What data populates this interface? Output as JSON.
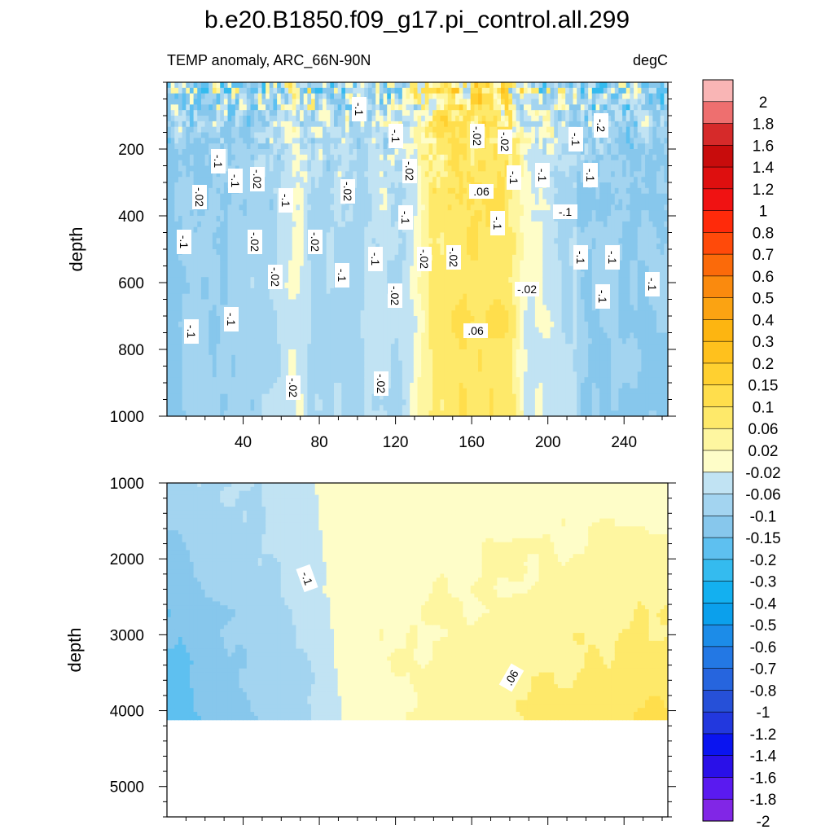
{
  "title": "b.e20.B1850.f09_g17.pi_control.all.299",
  "chart_data": {
    "type": "heatmap",
    "variable_label": "TEMP anomaly, ARC_66N-90N",
    "units_label": "degC",
    "colorbar": {
      "levels": [
        "2",
        "1.8",
        "1.6",
        "1.4",
        "1.2",
        "1",
        "0.8",
        "0.7",
        "0.6",
        "0.5",
        "0.4",
        "0.3",
        "0.2",
        "0.15",
        "0.1",
        "0.06",
        "0.02",
        "-0.02",
        "-0.06",
        "-0.1",
        "-0.15",
        "-0.2",
        "-0.3",
        "-0.4",
        "-0.5",
        "-0.6",
        "-0.7",
        "-0.8",
        "-1",
        "-1.2",
        "-1.4",
        "-1.6",
        "-1.8",
        "-2"
      ],
      "colors": [
        "#f9b5b5",
        "#ee6f6f",
        "#d62a2a",
        "#c80c0c",
        "#de0f0f",
        "#f01212",
        "#ff2a0a",
        "#ff4a0a",
        "#fb6a0a",
        "#fa8a0e",
        "#fba312",
        "#fdb511",
        "#ffc11d",
        "#ffd030",
        "#ffde4c",
        "#fee96a",
        "#fef6a0",
        "#fefdc8",
        "#c1e3f3",
        "#a3d4f0",
        "#87c7ec",
        "#5ec0f0",
        "#34bbef",
        "#13b0f0",
        "#0ba0ec",
        "#1c8ce8",
        "#2378e4",
        "#2665de",
        "#2650d8",
        "#2238de",
        "#0a14f0",
        "#2a10e8",
        "#5a1af0",
        "#8126e6"
      ]
    },
    "x_ticks": [
      "40",
      "80",
      "120",
      "160",
      "200",
      "240"
    ],
    "x_range": [
      0,
      263
    ],
    "upper_panel": {
      "ylabel": "depth",
      "y_ticks": [
        "200",
        "400",
        "600",
        "800",
        "1000"
      ],
      "y_range": [
        0,
        1000
      ],
      "contour_labels": [
        "-.1",
        "-.02",
        "-.1",
        "-.1",
        "-.02",
        "-.02",
        "-.02",
        "-.1",
        "-.2",
        "-.1",
        "-.02",
        "-.1",
        "-.02",
        "-.02",
        "-.1",
        "-.1",
        ".06",
        "-.1",
        "-.02",
        "-.1",
        "-.1",
        "-.1",
        "-.02",
        "-.02",
        "-.02",
        "-.1",
        "-.1",
        "-.1",
        "-.1",
        "-.02",
        "-.1",
        "-.02",
        "-.1",
        "-.1",
        "-.1",
        ".06",
        "-.1",
        "-.02",
        "-.02"
      ]
    },
    "lower_panel": {
      "ylabel": "depth",
      "y_ticks": [
        "1000",
        "2000",
        "3000",
        "4000",
        "5000"
      ],
      "y_range": [
        1000,
        5400
      ],
      "data_bottom_depth": 4120,
      "contour_labels": [
        "-.1",
        ".06"
      ]
    }
  }
}
